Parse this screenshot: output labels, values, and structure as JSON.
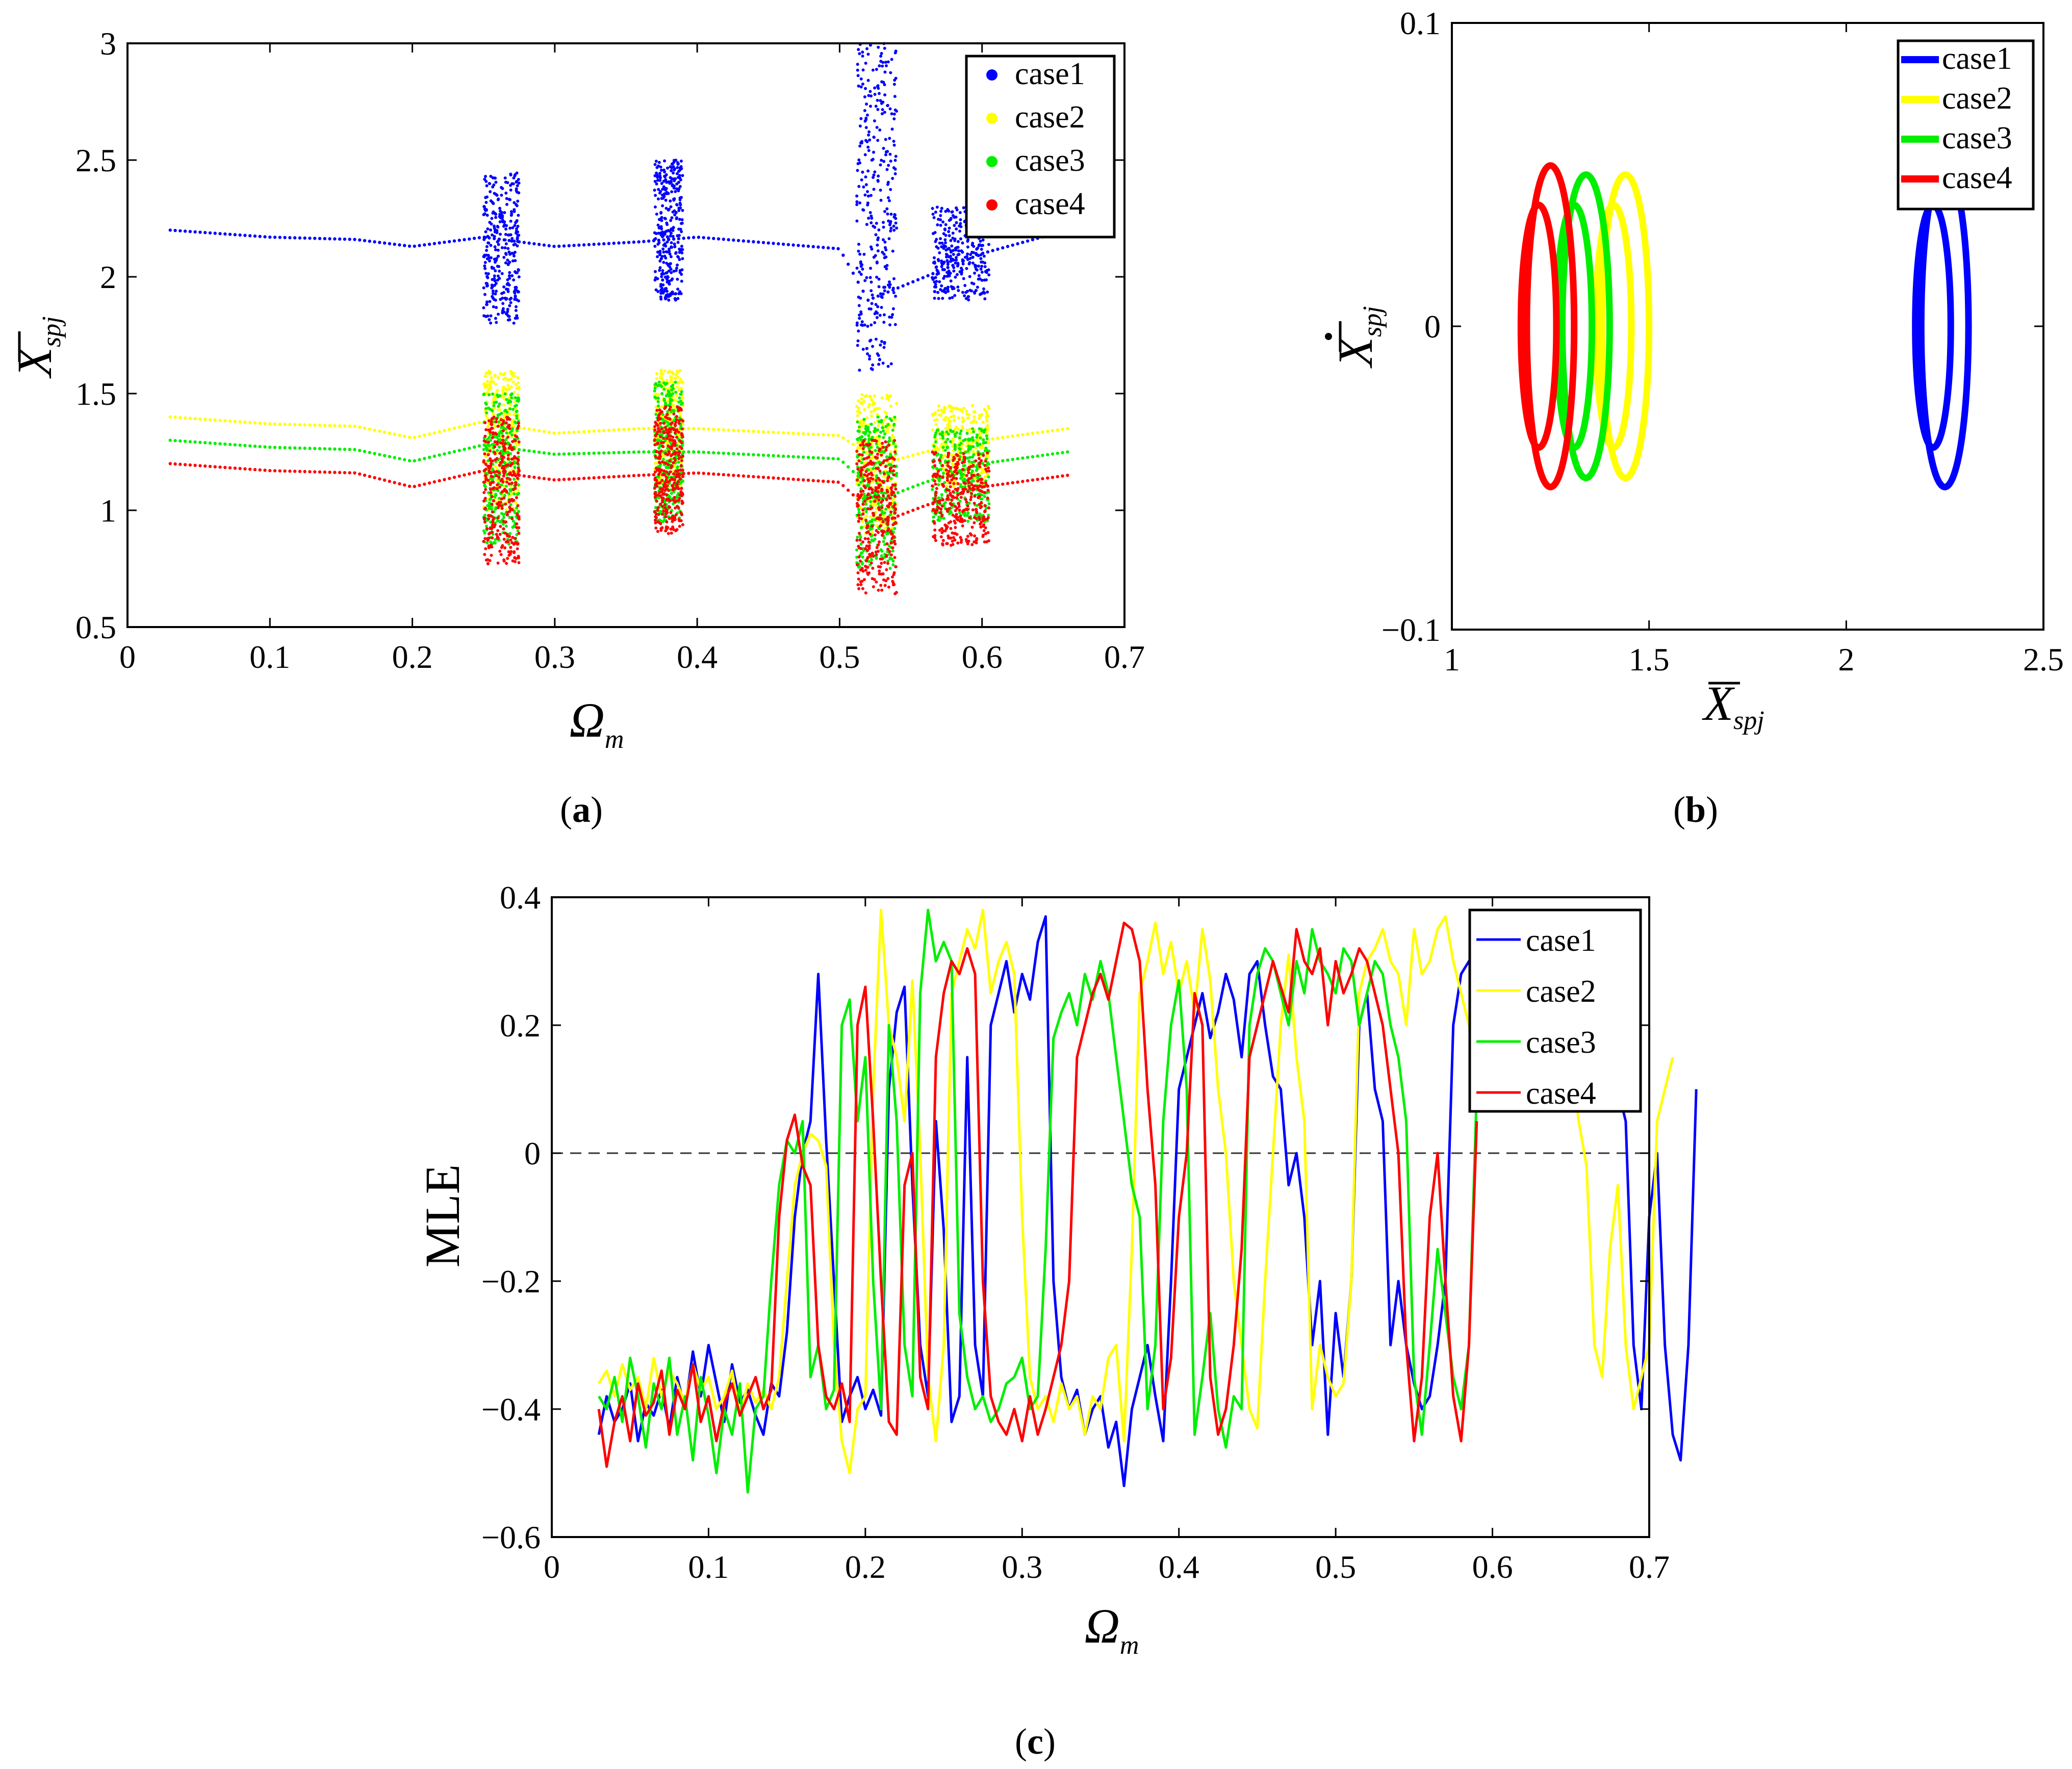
{
  "figure": {
    "panel_labels": {
      "a_letter": "a",
      "b_letter": "b",
      "c_letter": "c"
    }
  },
  "chart_data": [
    {
      "id": "a",
      "type": "scatter",
      "xlabel": "Ω",
      "xlabel_sub": "m",
      "ylabel": "X",
      "ylabel_sub": "spj",
      "xlim": [
        0,
        0.7
      ],
      "ylim": [
        0.5,
        3
      ],
      "xticks": [
        "0",
        "0.1",
        "0.2",
        "0.3",
        "0.4",
        "0.5",
        "0.6",
        "0.7"
      ],
      "yticks": [
        "0.5",
        "1",
        "1.5",
        "2",
        "2.5",
        "3"
      ],
      "legend_position": "top-right",
      "series": [
        {
          "name": "case1",
          "color": "#0000ff",
          "baseline": [
            [
              0.03,
              2.2
            ],
            [
              0.1,
              2.17
            ],
            [
              0.16,
              2.16
            ],
            [
              0.2,
              2.13
            ],
            [
              0.25,
              2.17
            ],
            [
              0.3,
              2.13
            ],
            [
              0.36,
              2.15
            ],
            [
              0.4,
              2.17
            ],
            [
              0.5,
              2.12
            ],
            [
              0.52,
              1.9
            ],
            [
              0.56,
              2.0
            ],
            [
              0.6,
              2.1
            ],
            [
              0.66,
              2.2
            ]
          ],
          "chaos_bands": [
            [
              0.25,
              0.275,
              1.8,
              2.45
            ],
            [
              0.37,
              0.39,
              1.9,
              2.5
            ],
            [
              0.512,
              0.54,
              1.6,
              3.0
            ],
            [
              0.565,
              0.605,
              1.9,
              2.3
            ]
          ]
        },
        {
          "name": "case2",
          "color": "#ffff00",
          "baseline": [
            [
              0.03,
              1.4
            ],
            [
              0.1,
              1.37
            ],
            [
              0.16,
              1.36
            ],
            [
              0.2,
              1.31
            ],
            [
              0.25,
              1.38
            ],
            [
              0.3,
              1.33
            ],
            [
              0.36,
              1.35
            ],
            [
              0.4,
              1.35
            ],
            [
              0.5,
              1.32
            ],
            [
              0.53,
              1.2
            ],
            [
              0.56,
              1.25
            ],
            [
              0.6,
              1.3
            ],
            [
              0.66,
              1.35
            ]
          ],
          "chaos_bands": [
            [
              0.25,
              0.275,
              1.0,
              1.6
            ],
            [
              0.37,
              0.39,
              1.1,
              1.6
            ],
            [
              0.512,
              0.54,
              0.9,
              1.5
            ],
            [
              0.565,
              0.605,
              1.1,
              1.45
            ]
          ]
        },
        {
          "name": "case3",
          "color": "#00ee00",
          "baseline": [
            [
              0.03,
              1.3
            ],
            [
              0.1,
              1.27
            ],
            [
              0.16,
              1.26
            ],
            [
              0.2,
              1.21
            ],
            [
              0.25,
              1.28
            ],
            [
              0.3,
              1.24
            ],
            [
              0.36,
              1.25
            ],
            [
              0.4,
              1.25
            ],
            [
              0.5,
              1.22
            ],
            [
              0.53,
              1.05
            ],
            [
              0.56,
              1.12
            ],
            [
              0.6,
              1.2
            ],
            [
              0.66,
              1.25
            ]
          ],
          "chaos_bands": [
            [
              0.25,
              0.275,
              0.85,
              1.5
            ],
            [
              0.37,
              0.39,
              0.95,
              1.55
            ],
            [
              0.512,
              0.54,
              0.75,
              1.4
            ],
            [
              0.565,
              0.605,
              0.95,
              1.35
            ]
          ]
        },
        {
          "name": "case4",
          "color": "#ff0000",
          "baseline": [
            [
              0.03,
              1.2
            ],
            [
              0.1,
              1.17
            ],
            [
              0.16,
              1.16
            ],
            [
              0.2,
              1.1
            ],
            [
              0.25,
              1.17
            ],
            [
              0.3,
              1.13
            ],
            [
              0.36,
              1.15
            ],
            [
              0.4,
              1.16
            ],
            [
              0.5,
              1.12
            ],
            [
              0.53,
              0.95
            ],
            [
              0.56,
              1.02
            ],
            [
              0.6,
              1.1
            ],
            [
              0.66,
              1.15
            ]
          ],
          "chaos_bands": [
            [
              0.25,
              0.275,
              0.77,
              1.4
            ],
            [
              0.37,
              0.39,
              0.9,
              1.45
            ],
            [
              0.512,
              0.54,
              0.63,
              1.3
            ],
            [
              0.565,
              0.605,
              0.85,
              1.25
            ]
          ]
        }
      ]
    },
    {
      "id": "b",
      "type": "line",
      "xlabel": "X",
      "xlabel_sub": "spj",
      "ylabel": "X",
      "ylabel_sub": "spj",
      "xlim": [
        1,
        2.5
      ],
      "ylim": [
        -0.1,
        0.1
      ],
      "xticks": [
        "1",
        "1.5",
        "2",
        "2.5"
      ],
      "yticks": [
        "−0.1",
        "0",
        "0.1"
      ],
      "legend_position": "top-right",
      "series": [
        {
          "name": "case1",
          "color": "#0000ff",
          "loops": [
            {
              "cx": 2.25,
              "cy": 0,
              "rx": 0.06,
              "ry": 0.053
            },
            {
              "cx": 2.22,
              "cy": 0,
              "rx": 0.045,
              "ry": 0.04
            }
          ]
        },
        {
          "name": "case2",
          "color": "#ffff00",
          "loops": [
            {
              "cx": 1.44,
              "cy": 0,
              "rx": 0.06,
              "ry": 0.05
            },
            {
              "cx": 1.41,
              "cy": 0,
              "rx": 0.045,
              "ry": 0.04
            }
          ]
        },
        {
          "name": "case3",
          "color": "#00ee00",
          "loops": [
            {
              "cx": 1.34,
              "cy": 0,
              "rx": 0.06,
              "ry": 0.05
            },
            {
              "cx": 1.31,
              "cy": 0,
              "rx": 0.045,
              "ry": 0.04
            }
          ]
        },
        {
          "name": "case4",
          "color": "#ff0000",
          "loops": [
            {
              "cx": 1.25,
              "cy": 0,
              "rx": 0.06,
              "ry": 0.053
            },
            {
              "cx": 1.22,
              "cy": 0,
              "rx": 0.045,
              "ry": 0.04
            }
          ]
        }
      ]
    },
    {
      "id": "c",
      "type": "line",
      "xlabel": "Ω",
      "xlabel_sub": "m",
      "ylabel": "MLE",
      "xlim": [
        0,
        0.7
      ],
      "ylim": [
        -0.6,
        0.4
      ],
      "xticks": [
        "0",
        "0.1",
        "0.2",
        "0.3",
        "0.4",
        "0.5",
        "0.6",
        "0.7"
      ],
      "yticks": [
        "−0.6",
        "−0.4",
        "−0.2",
        "0",
        "0.2",
        "0.4"
      ],
      "reference_line": 0,
      "legend_position": "top-right",
      "series": [
        {
          "name": "case1",
          "color": "#0000ff",
          "x_start": 0.03,
          "x_step": 0.005,
          "values": [
            -0.44,
            -0.38,
            -0.42,
            -0.4,
            -0.36,
            -0.45,
            -0.39,
            -0.41,
            -0.37,
            -0.43,
            -0.35,
            -0.4,
            -0.31,
            -0.38,
            -0.3,
            -0.36,
            -0.42,
            -0.33,
            -0.39,
            -0.37,
            -0.41,
            -0.44,
            -0.36,
            -0.38,
            -0.28,
            -0.1,
            0.0,
            0.05,
            0.28,
            0.02,
            -0.2,
            -0.42,
            -0.38,
            -0.35,
            -0.4,
            -0.37,
            -0.41,
            0.1,
            0.22,
            0.26,
            -0.05,
            -0.3,
            -0.38,
            0.05,
            -0.12,
            -0.42,
            -0.38,
            0.15,
            -0.3,
            -0.38,
            0.2,
            0.25,
            0.3,
            0.22,
            0.28,
            0.24,
            0.33,
            0.37,
            -0.2,
            -0.35,
            -0.4,
            -0.37,
            -0.44,
            -0.4,
            -0.38,
            -0.46,
            -0.42,
            -0.52,
            -0.4,
            -0.35,
            -0.3,
            -0.38,
            -0.45,
            -0.2,
            0.1,
            0.15,
            0.2,
            0.25,
            0.18,
            0.22,
            0.28,
            0.24,
            0.15,
            0.28,
            0.3,
            0.2,
            0.12,
            0.1,
            -0.05,
            0.0,
            -0.1,
            -0.3,
            -0.2,
            -0.44,
            -0.25,
            -0.35,
            -0.2,
            0.2,
            0.25,
            0.1,
            0.05,
            -0.3,
            -0.2,
            -0.3,
            -0.36,
            -0.4,
            -0.38,
            -0.3,
            -0.2,
            0.2,
            0.28,
            0.3,
            0.32,
            0.2,
            0.28,
            0.24,
            0.33,
            0.35,
            0.3,
            0.25,
            0.2,
            0.28,
            0.3,
            0.32,
            0.2,
            0.28,
            0.37,
            0.3,
            0.25,
            0.2,
            0.1,
            0.05,
            -0.3,
            -0.4,
            -0.1,
            0.0,
            -0.3,
            -0.44,
            -0.48,
            -0.3,
            0.1
          ]
        },
        {
          "name": "case2",
          "color": "#ffff00",
          "x_start": 0.03,
          "x_step": 0.005,
          "values": [
            -0.36,
            -0.34,
            -0.38,
            -0.33,
            -0.37,
            -0.35,
            -0.4,
            -0.32,
            -0.38,
            -0.34,
            -0.36,
            -0.39,
            -0.33,
            -0.37,
            -0.35,
            -0.4,
            -0.38,
            -0.34,
            -0.41,
            -0.36,
            -0.39,
            -0.37,
            -0.4,
            -0.35,
            -0.2,
            -0.05,
            0.0,
            0.03,
            0.02,
            -0.02,
            -0.3,
            -0.45,
            -0.5,
            -0.4,
            -0.38,
            0.1,
            0.38,
            0.2,
            0.15,
            0.05,
            0.27,
            0.0,
            -0.35,
            -0.45,
            -0.3,
            0.25,
            0.3,
            0.35,
            0.32,
            0.38,
            0.25,
            0.3,
            0.33,
            0.28,
            -0.1,
            -0.35,
            -0.4,
            -0.38,
            -0.42,
            -0.36,
            -0.4,
            -0.38,
            -0.44,
            -0.38,
            -0.4,
            -0.32,
            -0.3,
            -0.45,
            -0.15,
            0.25,
            0.3,
            0.36,
            0.28,
            0.33,
            0.25,
            0.3,
            0.22,
            0.35,
            0.27,
            0.1,
            0.0,
            -0.2,
            -0.3,
            -0.4,
            -0.43,
            -0.2,
            0.0,
            0.2,
            0.31,
            0.15,
            0.05,
            -0.4,
            -0.3,
            -0.35,
            -0.38,
            -0.36,
            -0.2,
            0.25,
            0.3,
            0.32,
            0.35,
            0.3,
            0.28,
            0.2,
            0.35,
            0.28,
            0.3,
            0.35,
            0.37,
            0.3,
            0.25,
            0.2,
            0.15,
            0.28,
            0.3,
            0.32,
            0.2,
            0.28,
            0.3,
            0.25,
            0.2,
            0.3,
            0.33,
            0.2,
            0.15,
            0.05,
            -0.02,
            -0.3,
            -0.35,
            -0.15,
            -0.05,
            -0.3,
            -0.4,
            -0.35,
            -0.3,
            0.05,
            0.1,
            0.15
          ]
        },
        {
          "name": "case3",
          "color": "#00ee00",
          "x_start": 0.03,
          "x_step": 0.005,
          "values": [
            -0.38,
            -0.4,
            -0.35,
            -0.42,
            -0.32,
            -0.38,
            -0.46,
            -0.36,
            -0.4,
            -0.32,
            -0.44,
            -0.38,
            -0.48,
            -0.35,
            -0.41,
            -0.5,
            -0.4,
            -0.44,
            -0.36,
            -0.53,
            -0.4,
            -0.38,
            -0.2,
            -0.05,
            0.02,
            0.0,
            0.05,
            -0.35,
            -0.3,
            -0.4,
            -0.37,
            0.2,
            0.24,
            0.05,
            0.15,
            -0.2,
            -0.4,
            0.2,
            0.05,
            -0.3,
            -0.38,
            0.25,
            0.38,
            0.3,
            0.33,
            0.3,
            -0.25,
            -0.35,
            -0.4,
            -0.38,
            -0.42,
            -0.4,
            -0.36,
            -0.35,
            -0.32,
            -0.4,
            -0.38,
            -0.15,
            0.18,
            0.22,
            0.25,
            0.2,
            0.28,
            0.24,
            0.3,
            0.25,
            0.15,
            0.05,
            -0.05,
            -0.1,
            -0.4,
            -0.3,
            0.05,
            0.2,
            0.27,
            0.1,
            -0.44,
            -0.35,
            -0.25,
            -0.4,
            -0.46,
            -0.38,
            -0.4,
            0.2,
            0.28,
            0.32,
            0.3,
            0.25,
            0.2,
            0.3,
            0.25,
            0.35,
            0.3,
            0.28,
            0.25,
            0.32,
            0.3,
            0.2,
            0.25,
            0.3,
            0.28,
            0.2,
            0.15,
            0.05,
            -0.35,
            -0.44,
            -0.3,
            -0.15,
            -0.25,
            -0.35,
            -0.4,
            -0.3,
            0.1
          ]
        },
        {
          "name": "case4",
          "color": "#ff0000",
          "x_start": 0.03,
          "x_step": 0.005,
          "values": [
            -0.4,
            -0.49,
            -0.42,
            -0.38,
            -0.45,
            -0.36,
            -0.41,
            -0.39,
            -0.34,
            -0.44,
            -0.37,
            -0.4,
            -0.33,
            -0.42,
            -0.38,
            -0.45,
            -0.39,
            -0.36,
            -0.41,
            -0.38,
            -0.35,
            -0.4,
            -0.37,
            -0.1,
            0.02,
            0.06,
            -0.02,
            -0.05,
            -0.3,
            -0.38,
            -0.4,
            -0.36,
            -0.42,
            0.2,
            0.26,
            0.05,
            -0.2,
            -0.42,
            -0.44,
            -0.05,
            0.0,
            -0.35,
            -0.4,
            0.15,
            0.25,
            0.3,
            0.28,
            0.32,
            0.28,
            -0.2,
            -0.38,
            -0.42,
            -0.44,
            -0.4,
            -0.45,
            -0.38,
            -0.44,
            -0.4,
            -0.35,
            -0.3,
            -0.2,
            0.15,
            0.2,
            0.25,
            0.28,
            0.24,
            0.3,
            0.36,
            0.35,
            0.3,
            0.1,
            -0.05,
            -0.4,
            -0.32,
            -0.1,
            0.0,
            0.25,
            0.2,
            -0.35,
            -0.44,
            -0.4,
            -0.3,
            -0.15,
            0.15,
            0.2,
            0.25,
            0.3,
            0.26,
            0.22,
            0.35,
            0.3,
            0.28,
            0.32,
            0.2,
            0.3,
            0.25,
            0.28,
            0.32,
            0.3,
            0.25,
            0.2,
            0.1,
            0.0,
            -0.3,
            -0.45,
            -0.35,
            -0.1,
            0.0,
            -0.2,
            -0.38,
            -0.45,
            -0.3,
            0.05
          ]
        }
      ]
    }
  ]
}
